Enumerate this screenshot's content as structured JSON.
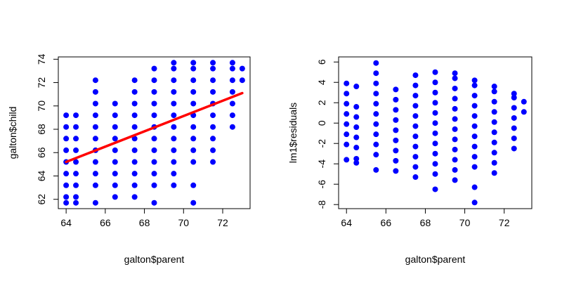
{
  "chart_data": [
    {
      "type": "scatter",
      "xlabel": "galton$parent",
      "ylabel": "galton$child",
      "xlim": [
        63.6,
        73.4
      ],
      "ylim": [
        61.2,
        74.2
      ],
      "xticks": [
        64,
        66,
        68,
        70,
        72
      ],
      "yticks": [
        62,
        64,
        66,
        68,
        70,
        72,
        74
      ],
      "point_color": "#0000ff",
      "columns": [
        {
          "x": 64.0,
          "y": [
            61.7,
            62.2,
            63.2,
            64.2,
            65.2,
            66.2,
            67.2,
            68.2,
            69.2
          ]
        },
        {
          "x": 64.5,
          "y": [
            61.7,
            62.2,
            63.2,
            64.2,
            65.2,
            66.2,
            67.2,
            68.2,
            69.2
          ]
        },
        {
          "x": 65.5,
          "y": [
            61.7,
            63.2,
            64.2,
            65.2,
            66.2,
            67.2,
            68.2,
            69.2,
            70.2,
            71.2,
            72.2
          ]
        },
        {
          "x": 66.5,
          "y": [
            62.2,
            63.2,
            64.2,
            65.2,
            66.2,
            67.2,
            68.2,
            69.2,
            70.2
          ]
        },
        {
          "x": 67.5,
          "y": [
            62.2,
            63.2,
            64.2,
            65.2,
            66.2,
            67.2,
            68.2,
            69.2,
            70.2,
            71.2,
            72.2
          ]
        },
        {
          "x": 68.5,
          "y": [
            61.7,
            63.2,
            64.2,
            65.2,
            66.2,
            67.2,
            68.2,
            69.2,
            70.2,
            71.2,
            72.2,
            73.2
          ]
        },
        {
          "x": 69.5,
          "y": [
            63.2,
            64.2,
            65.2,
            66.2,
            67.2,
            68.2,
            69.2,
            70.2,
            71.2,
            72.2,
            73.2,
            73.7
          ]
        },
        {
          "x": 70.5,
          "y": [
            61.7,
            63.2,
            65.2,
            66.2,
            67.2,
            68.2,
            69.2,
            70.2,
            71.2,
            72.2,
            73.2,
            73.7
          ]
        },
        {
          "x": 71.5,
          "y": [
            65.2,
            66.2,
            67.2,
            68.2,
            69.2,
            70.2,
            71.2,
            72.2,
            73.2,
            73.7
          ]
        },
        {
          "x": 72.5,
          "y": [
            68.2,
            69.2,
            70.2,
            71.2,
            72.2,
            73.2,
            73.7
          ]
        },
        {
          "x": 73.0,
          "y": [
            72.2,
            73.2
          ]
        }
      ],
      "fit_line": {
        "x": [
          64.0,
          73.0
        ],
        "y": [
          65.2,
          71.1
        ],
        "color": "#ff0000"
      }
    },
    {
      "type": "scatter",
      "xlabel": "galton$parent",
      "ylabel": "lm1$residuals",
      "xlim": [
        63.6,
        73.4
      ],
      "ylim": [
        -8.4,
        6.5
      ],
      "xticks": [
        64,
        66,
        68,
        70,
        72
      ],
      "yticks": [
        -8,
        -6,
        -4,
        -2,
        0,
        2,
        4,
        6
      ],
      "point_color": "#0000ff",
      "columns": [
        {
          "x": 64.0,
          "y": [
            -3.6,
            -2.1,
            -1.1,
            -0.1,
            0.9,
            1.9,
            2.9,
            3.9
          ]
        },
        {
          "x": 64.5,
          "y": [
            -3.9,
            -3.5,
            -2.4,
            -1.4,
            -0.4,
            0.6,
            1.6,
            3.6
          ]
        },
        {
          "x": 65.5,
          "y": [
            -4.6,
            -3.1,
            -2.1,
            -1.1,
            -0.1,
            0.9,
            1.9,
            2.9,
            3.9,
            4.9,
            5.9
          ]
        },
        {
          "x": 66.5,
          "y": [
            -4.7,
            -3.7,
            -2.7,
            -1.7,
            -0.7,
            0.3,
            1.3,
            2.3,
            3.3
          ]
        },
        {
          "x": 67.5,
          "y": [
            -5.3,
            -4.3,
            -3.3,
            -2.3,
            -1.3,
            -0.3,
            0.7,
            1.7,
            2.7,
            3.7,
            4.7
          ]
        },
        {
          "x": 68.5,
          "y": [
            -6.5,
            -5.0,
            -4.0,
            -3.0,
            -2.0,
            -1.0,
            0.0,
            1.0,
            2.0,
            3.0,
            4.0,
            5.0
          ]
        },
        {
          "x": 69.5,
          "y": [
            -5.6,
            -4.6,
            -3.6,
            -2.6,
            -1.6,
            -0.6,
            0.4,
            1.4,
            2.4,
            3.4,
            4.4,
            4.9
          ]
        },
        {
          "x": 70.5,
          "y": [
            -7.8,
            -6.3,
            -4.3,
            -3.3,
            -2.3,
            -1.3,
            -0.3,
            0.7,
            1.7,
            2.7,
            3.7,
            4.2
          ]
        },
        {
          "x": 71.5,
          "y": [
            -4.9,
            -3.9,
            -2.9,
            -1.9,
            -0.9,
            0.1,
            1.1,
            2.1,
            3.1,
            3.6
          ]
        },
        {
          "x": 72.5,
          "y": [
            -2.5,
            -1.5,
            -0.5,
            0.5,
            1.5,
            2.5,
            2.9
          ]
        },
        {
          "x": 73.0,
          "y": [
            1.1,
            2.1
          ]
        }
      ]
    }
  ]
}
